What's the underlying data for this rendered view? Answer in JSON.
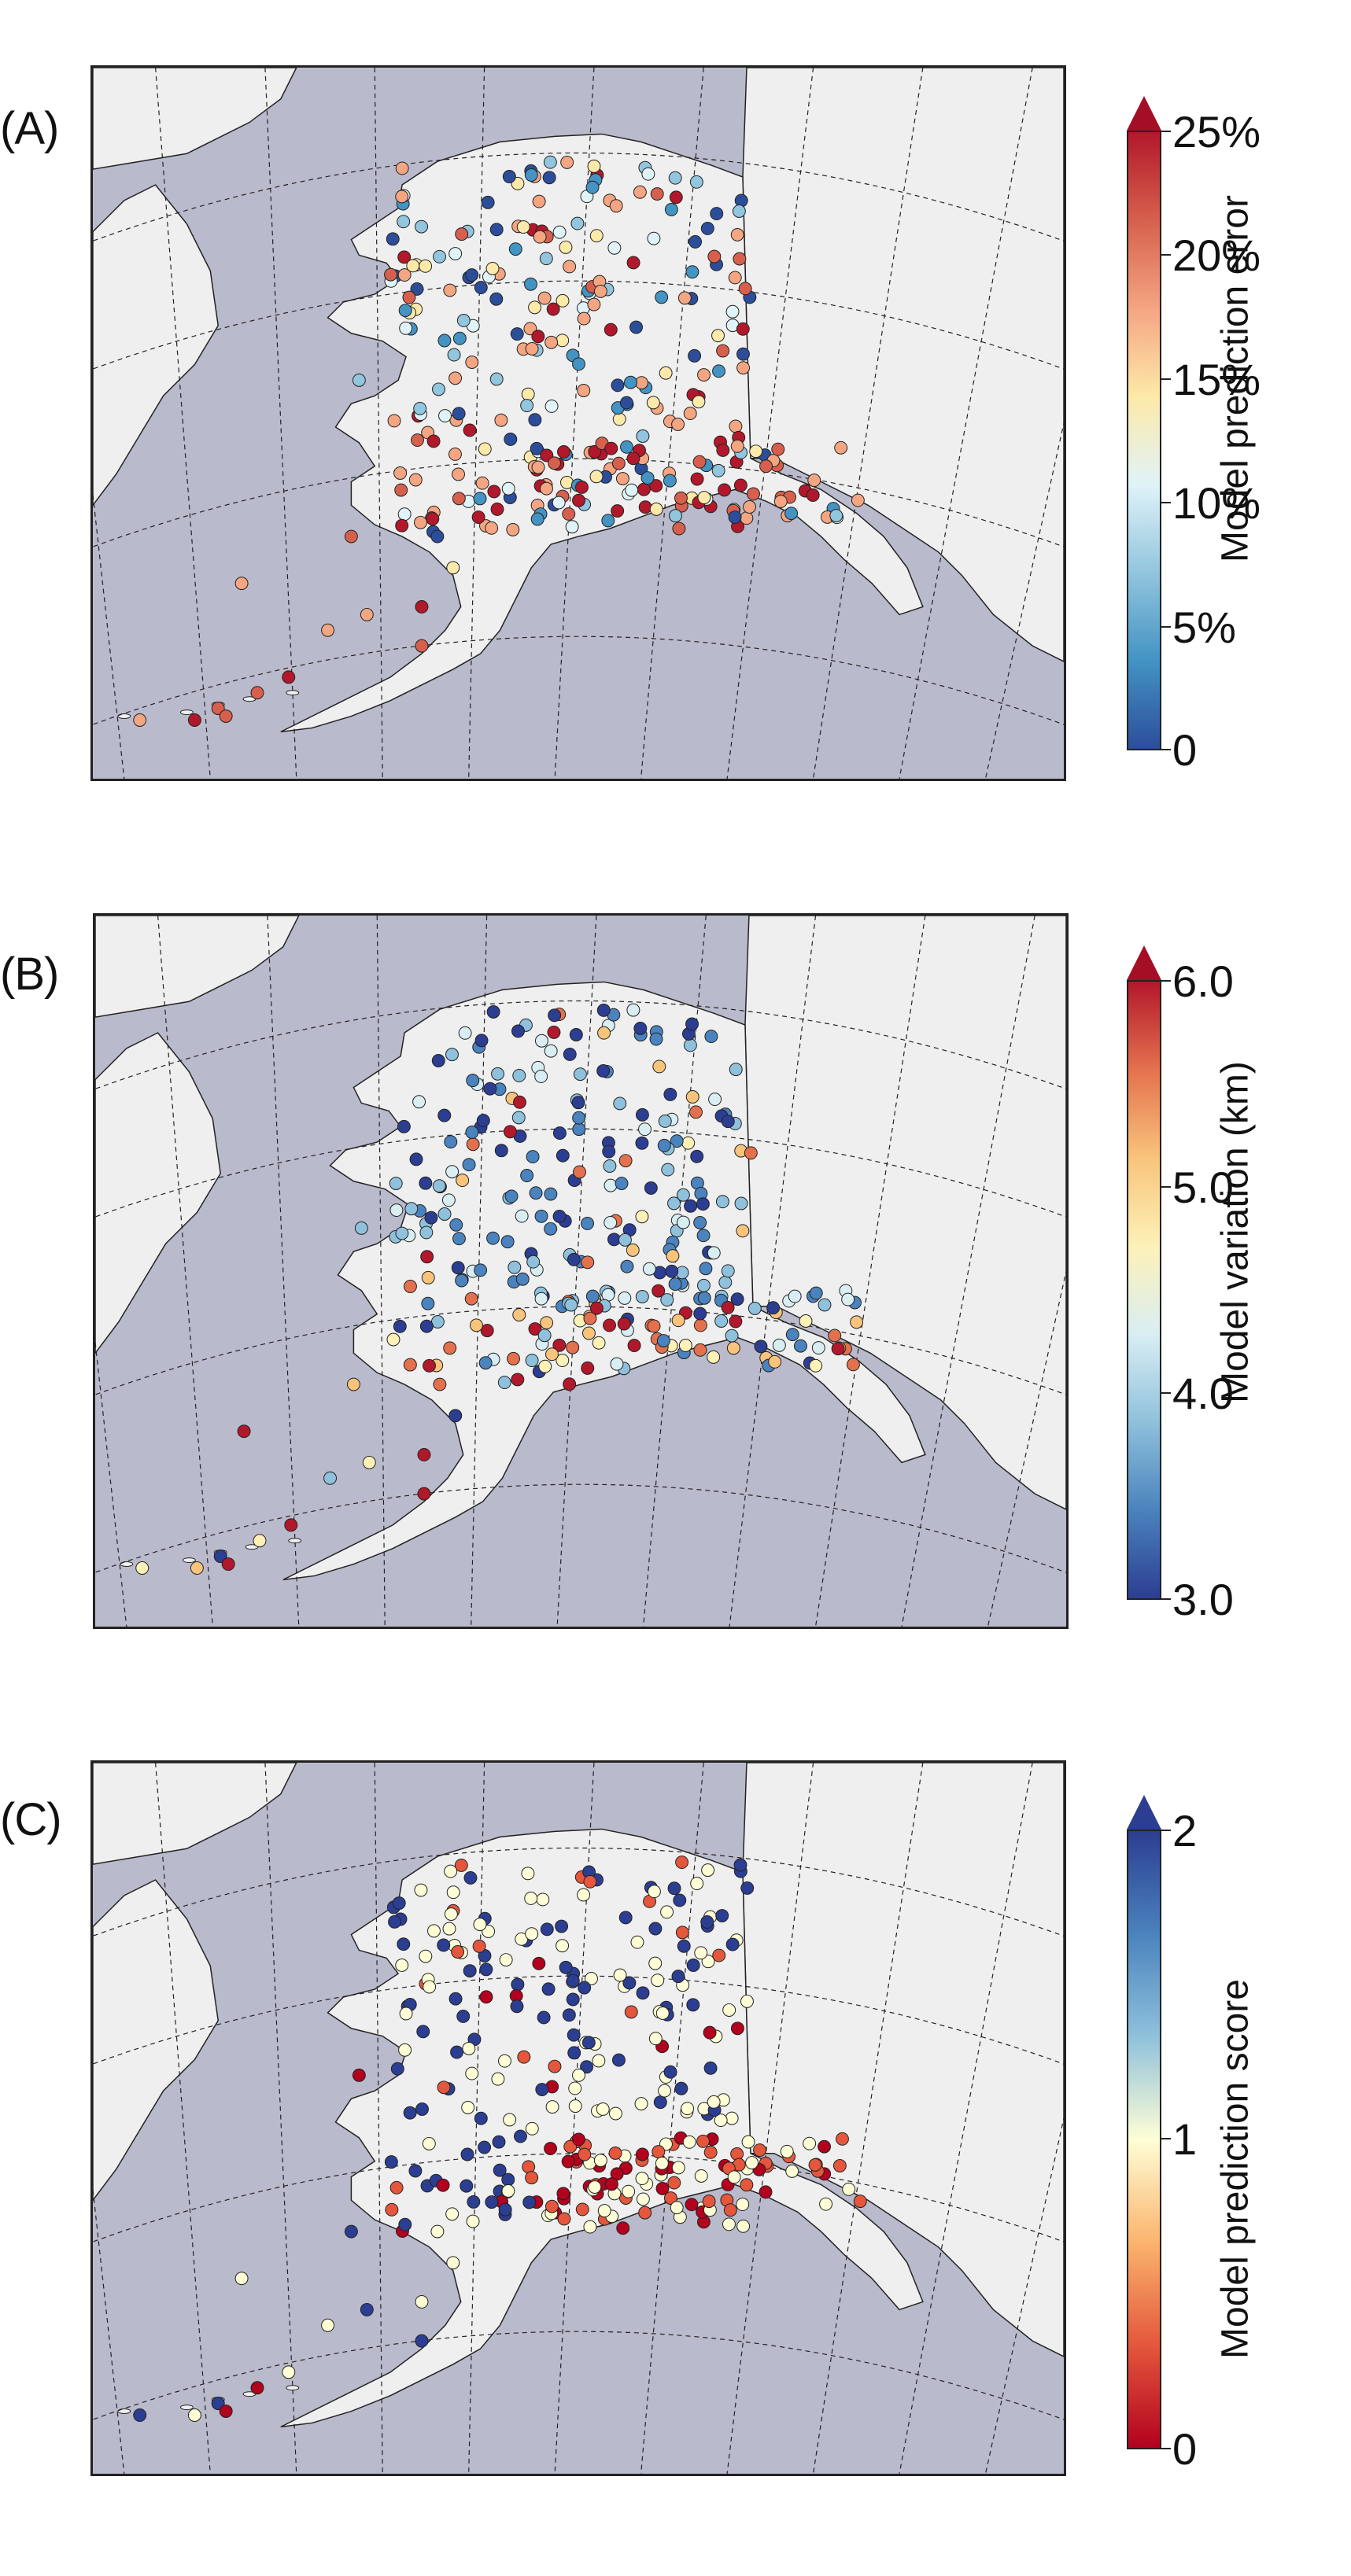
{
  "figure": {
    "panels": [
      {
        "label": "(A)",
        "colorbar": {
          "title": "Model prediction error",
          "ticks": [
            "25%",
            "20%",
            "15%",
            "10%",
            "5%",
            "0"
          ],
          "colors": [
            "#b2182b",
            "#d6604d",
            "#f4a582",
            "#fde9a9",
            "#e0f3f8",
            "#92c5de",
            "#4393c3",
            "#2c4e9a"
          ],
          "arrow_color": "#a50f25",
          "extend": "max"
        }
      },
      {
        "label": "(B)",
        "colorbar": {
          "title": "Model variation (km)",
          "ticks": [
            "6.0",
            "5.0",
            "4.0",
            "3.0"
          ],
          "colors": [
            "#b2182b",
            "#e4714e",
            "#f8c47c",
            "#fdf1b8",
            "#d9eef3",
            "#8fc1dc",
            "#4a83bd",
            "#2c3e91"
          ],
          "arrow_color": "#a50f25",
          "extend": "max"
        }
      },
      {
        "label": "(C)",
        "colorbar": {
          "title": "Model prediction score",
          "ticks": [
            "2",
            "1",
            "0"
          ],
          "colors": [
            "#2c3e91",
            "#4a83bd",
            "#8fc1dc",
            "#fefed6",
            "#fbb46e",
            "#e4573c",
            "#b2021e"
          ],
          "arrow_color": "#2c3e91",
          "extend": "max"
        }
      }
    ],
    "map_colors": {
      "ocean": "#b9bacb",
      "land": "#efefef",
      "coast": "#222222",
      "grid": "#222222"
    }
  }
}
